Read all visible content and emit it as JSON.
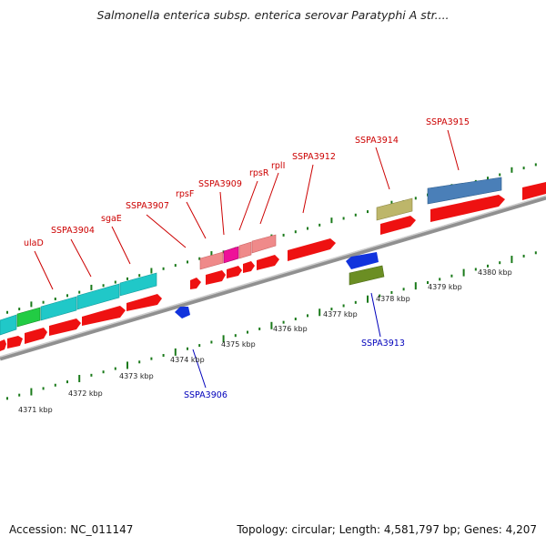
{
  "title": "Salmonella enterica subsp. enterica serovar Paratyphi A str....",
  "footer": {
    "accession": "Accession: NC_011147",
    "summary": "Topology: circular; Length: 4,581,797 bp; Genes: 4,207"
  },
  "colors": {
    "forward_cds": "#ee1111",
    "reverse_cds": "#1133dd",
    "tick": "#1a7a1a",
    "backbone": "#888888",
    "forward_label": "#cc0000",
    "reverse_label": "#0000bb"
  },
  "ruler": [
    {
      "label": "4371 kbp"
    },
    {
      "label": "4372 kbp"
    },
    {
      "label": "4373 kbp"
    },
    {
      "label": "4374 kbp"
    },
    {
      "label": "4375 kbp"
    },
    {
      "label": "4376 kbp"
    },
    {
      "label": "4377 kbp"
    },
    {
      "label": "4378 kbp"
    },
    {
      "label": "4379 kbp"
    },
    {
      "label": "4380 kbp"
    }
  ],
  "forward_labels": [
    "ulaD",
    "SSPA3904",
    "sgaE",
    "SSPA3907",
    "rpsF",
    "SSPA3909",
    "rpsR",
    "rplI",
    "SSPA3912",
    "SSPA3914",
    "SSPA3915"
  ],
  "reverse_labels": [
    "SSPA3906",
    "SSPA3913"
  ]
}
